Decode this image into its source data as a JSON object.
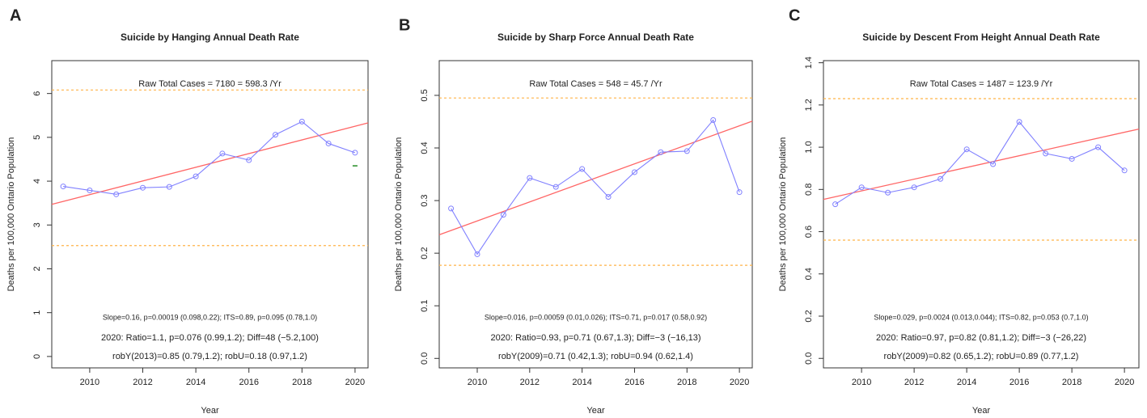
{
  "chart_data": [
    {
      "type": "line",
      "panel": "A",
      "title": "Suicide by Hanging Annual Death Rate",
      "x_label": "Year",
      "y_label": "Deaths per 100,000 Ontario Population",
      "x": [
        2009,
        2010,
        2011,
        2012,
        2013,
        2014,
        2015,
        2016,
        2017,
        2018,
        2019,
        2020
      ],
      "values": [
        3.88,
        3.79,
        3.7,
        3.85,
        3.87,
        4.11,
        4.63,
        4.48,
        5.06,
        5.36,
        4.86,
        4.65
      ],
      "color": "#8080ff",
      "xlim": [
        2008.57,
        2020.49
      ],
      "xticks": [
        2010,
        2012,
        2014,
        2016,
        2018,
        2020
      ],
      "ylim": [
        -0.26,
        6.75
      ],
      "yticks": [
        0,
        1,
        2,
        3,
        4,
        5,
        6
      ],
      "trend": {
        "x": [
          2008.57,
          2020.49
        ],
        "y": [
          3.47,
          5.33
        ],
        "color": "#ff6666"
      },
      "hlines": {
        "values": [
          6.08,
          2.53
        ],
        "color": "#ffb347"
      },
      "marker_2020": {
        "x": 2020,
        "value": 4.35,
        "color": "#228b22"
      },
      "annotations": [
        {
          "text": "Raw Total Cases = 7180 = 598.3 /Yr",
          "color": "#b03a3a"
        },
        {
          "text": "Slope=0.16, p=0.00019 (0.098,0.22);  ITS=0.89, p=0.095 (0.78,1.0)",
          "color": "#e83030"
        },
        {
          "text": "2020:  Ratio=1.1, p=0.076 (0.99,1.2);  Diff=48 (−5.2,100)",
          "color": "#2e8b2e"
        },
        {
          "text": "robY(2013)=0.85 (0.79,1.2); robU=0.18 (0.97,1.2)",
          "color": "#b03a3a"
        }
      ]
    },
    {
      "type": "line",
      "panel": "B",
      "title": "Suicide by Sharp Force Annual Death Rate",
      "x_label": "Year",
      "y_label": "Deaths per 100,000 Ontario Population",
      "x": [
        2009,
        2010,
        2011,
        2012,
        2013,
        2014,
        2015,
        2016,
        2017,
        2018,
        2019,
        2020
      ],
      "values": [
        0.285,
        0.198,
        0.273,
        0.343,
        0.326,
        0.36,
        0.307,
        0.354,
        0.392,
        0.394,
        0.453,
        0.316
      ],
      "color": "#8080ff",
      "xlim": [
        2008.55,
        2020.49
      ],
      "xticks": [
        2010,
        2012,
        2014,
        2016,
        2018,
        2020
      ],
      "ylim": [
        -0.018,
        0.566
      ],
      "yticks": [
        {
          "value": 0,
          "label": "0.0"
        },
        0.1,
        0.2,
        0.3,
        0.4,
        0.5
      ],
      "trend": {
        "x": [
          2008.55,
          2020.49
        ],
        "y": [
          0.235,
          0.451
        ],
        "color": "#ff6666"
      },
      "hlines": {
        "values": [
          0.495,
          0.177
        ],
        "color": "#ffb347"
      },
      "annotations": [
        {
          "text": "Raw Total Cases = 548 = 45.7 /Yr",
          "color": "#b03a3a"
        },
        {
          "text": "Slope=0.016, p=0.00059 (0.01,0.026);  ITS=0.71, p=0.017 (0.58,0.92)",
          "color": "#e83030"
        },
        {
          "text": "2020:  Ratio=0.93, p=0.71 (0.67,1.3);  Diff=−3 (−16,13)",
          "color": "#2e8b2e"
        },
        {
          "text": "robY(2009)=0.71 (0.42,1.3); robU=0.94 (0.62,1.4)",
          "color": "#b03a3a"
        }
      ]
    },
    {
      "type": "line",
      "panel": "C",
      "title": "Suicide by Descent From Height Annual Death Rate",
      "x_label": "Year",
      "y_label": "Deaths per 100,000 Ontario Population",
      "x": [
        2009,
        2010,
        2011,
        2012,
        2013,
        2014,
        2015,
        2016,
        2017,
        2018,
        2019,
        2020
      ],
      "values": [
        0.73,
        0.81,
        0.785,
        0.81,
        0.85,
        0.99,
        0.92,
        1.12,
        0.97,
        0.945,
        1.0,
        0.89
      ],
      "color": "#8080ff",
      "xlim": [
        2008.55,
        2020.55
      ],
      "xticks": [
        2010,
        2012,
        2014,
        2016,
        2018,
        2020
      ],
      "ylim": [
        -0.045,
        1.41
      ],
      "yticks": [
        {
          "value": 0,
          "label": "0.0"
        },
        0.2,
        0.4,
        0.6,
        0.8,
        {
          "value": 1,
          "label": "1.0"
        },
        1.2,
        1.4
      ],
      "trend": {
        "x": [
          2008.55,
          2020.55
        ],
        "y": [
          0.753,
          1.086
        ],
        "color": "#ff6666"
      },
      "hlines": {
        "values": [
          1.23,
          0.56
        ],
        "color": "#ffb347"
      },
      "annotations": [
        {
          "text": "Raw Total Cases = 1487 = 123.9 /Yr",
          "color": "#b03a3a"
        },
        {
          "text": "Slope=0.029, p=0.0024 (0.013,0.044);  ITS=0.82, p=0.053 (0.7,1.0)",
          "color": "#e83030"
        },
        {
          "text": "2020:  Ratio=0.97, p=0.82 (0.81,1.2);  Diff=−3 (−26,22)",
          "color": "#2e8b2e"
        },
        {
          "text": "robY(2009)=0.82 (0.65,1.2); robU=0.89 (0.77,1.2)",
          "color": "#b03a3a"
        }
      ]
    }
  ]
}
